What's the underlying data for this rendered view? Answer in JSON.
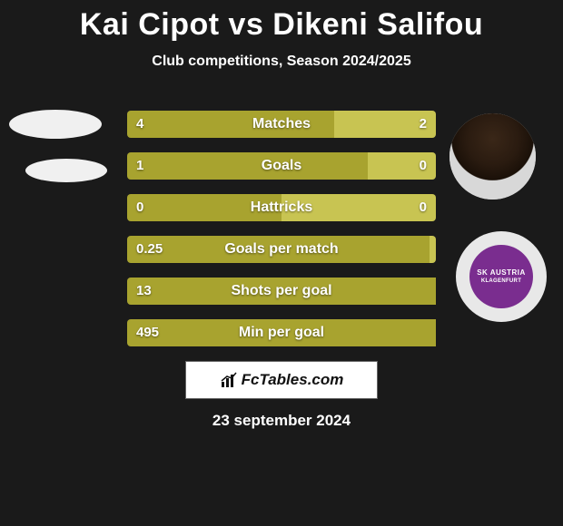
{
  "title": "Kai Cipot vs Dikeni Salifou",
  "subtitle": "Club competitions, Season 2024/2025",
  "date": "23 september 2024",
  "logo_text": "FcTables.com",
  "badge": {
    "line1": "SK AUSTRIA",
    "line2": "KLAGENFURT"
  },
  "colors": {
    "left_bar": "#a8a32f",
    "right_bar": "#c8c452",
    "bg": "#1a1a1a"
  },
  "stats": [
    {
      "label": "Matches",
      "left_val": "4",
      "right_val": "2",
      "left_pct": 67,
      "right_pct": 33
    },
    {
      "label": "Goals",
      "left_val": "1",
      "right_val": "0",
      "left_pct": 78,
      "right_pct": 22
    },
    {
      "label": "Hattricks",
      "left_val": "0",
      "right_val": "0",
      "left_pct": 50,
      "right_pct": 50
    },
    {
      "label": "Goals per match",
      "left_val": "0.25",
      "right_val": "",
      "left_pct": 98,
      "right_pct": 2
    },
    {
      "label": "Shots per goal",
      "left_val": "13",
      "right_val": "",
      "left_pct": 100,
      "right_pct": 0
    },
    {
      "label": "Min per goal",
      "left_val": "495",
      "right_val": "",
      "left_pct": 100,
      "right_pct": 0
    }
  ]
}
